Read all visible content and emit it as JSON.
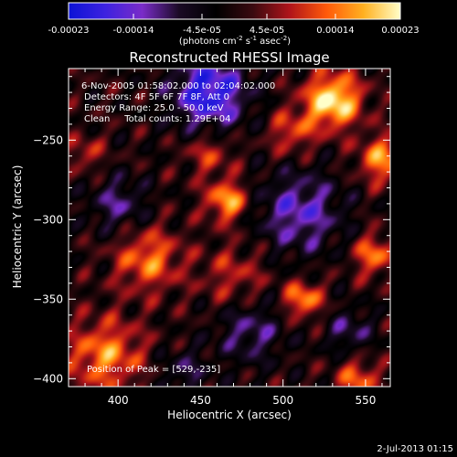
{
  "chart_data": {
    "type": "heatmap",
    "title": "Reconstructed RHESSI Image",
    "xlabel": "Heliocentric X (arcsec)",
    "ylabel": "Heliocentric Y (arcsec)",
    "xlim": [
      370,
      565
    ],
    "ylim": [
      -405,
      -205
    ],
    "x_ticks": [
      400,
      450,
      500,
      550
    ],
    "x_tick_labels": [
      "400",
      "450",
      "500",
      "550"
    ],
    "y_ticks": [
      -250,
      -300,
      -350,
      -400
    ],
    "y_tick_labels": [
      "−250",
      "−300",
      "−350",
      "−400"
    ],
    "colorbar": {
      "range": [
        -0.00023,
        0.00023
      ],
      "tick_values": [
        -0.00023,
        -0.00014,
        -4.5e-05,
        4.5e-05,
        0.00014,
        0.00023
      ],
      "tick_labels": [
        "-0.00023",
        "-0.00014",
        "-4.5e-05",
        "4.5e-05",
        "0.00014",
        "0.00023"
      ],
      "unit_prefix": "(photons cm",
      "unit_exp1": "-2",
      "unit_mid": " s",
      "unit_exp2": "-1",
      "unit_mid2": " asec",
      "unit_exp3": "-2",
      "unit_suffix": ")",
      "colors": [
        "#0b12d6",
        "#3d22e0",
        "#7a2cc8",
        "#1a0a24",
        "#000000",
        "#3a0a10",
        "#b0141a",
        "#ff5a0a",
        "#ffb020",
        "#ffffc8"
      ]
    },
    "sources": [
      {
        "x": 530,
        "y": -225,
        "amp": 1.0,
        "sigma": 12
      },
      {
        "x": 560,
        "y": -262,
        "amp": 0.7,
        "sigma": 10
      },
      {
        "x": 466,
        "y": -288,
        "amp": 0.75,
        "sigma": 9
      },
      {
        "x": 418,
        "y": -325,
        "amp": 0.6,
        "sigma": 14
      },
      {
        "x": 392,
        "y": -385,
        "amp": 0.65,
        "sigma": 16
      },
      {
        "x": 512,
        "y": -350,
        "amp": 0.7,
        "sigma": 8
      },
      {
        "x": 555,
        "y": -322,
        "amp": 0.6,
        "sigma": 9
      },
      {
        "x": 545,
        "y": -400,
        "amp": 0.55,
        "sigma": 9
      },
      {
        "x": 470,
        "y": -335,
        "amp": 0.35,
        "sigma": 14
      },
      {
        "x": 455,
        "y": -258,
        "amp": 0.4,
        "sigma": 10
      },
      {
        "x": 380,
        "y": -258,
        "amp": 0.35,
        "sigma": 8
      },
      {
        "x": 505,
        "y": -245,
        "amp": 0.45,
        "sigma": 10
      }
    ],
    "negatives": [
      {
        "x": 455,
        "y": -220,
        "amp": 0.9,
        "sigma": 16
      },
      {
        "x": 510,
        "y": -295,
        "amp": 0.6,
        "sigma": 18
      },
      {
        "x": 480,
        "y": -370,
        "amp": 0.45,
        "sigma": 14
      },
      {
        "x": 400,
        "y": -290,
        "amp": 0.45,
        "sigma": 12
      },
      {
        "x": 540,
        "y": -370,
        "amp": 0.4,
        "sigma": 10
      },
      {
        "x": 440,
        "y": -395,
        "amp": 0.35,
        "sigma": 10
      }
    ],
    "annotations": [
      "6-Nov-2005 01:58:02.000 to 02:04:02.000",
      "Detectors: 4F 5F 6F 7F 8F, Att 0",
      "Energy Range: 25.0 - 50.0 keV",
      "Clean     Total counts: 1.29E+04"
    ],
    "peak_label": "Position of Peak = [529,-235]"
  },
  "footer": {
    "timestamp": "2-Jul-2013 01:15"
  }
}
